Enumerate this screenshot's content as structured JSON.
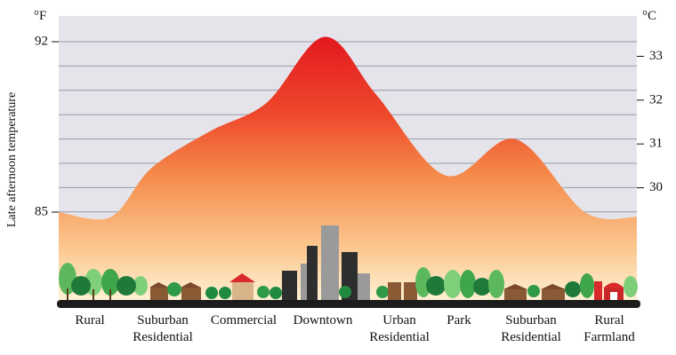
{
  "chart_data": {
    "type": "area",
    "title": "",
    "ylabel": "Late afternoon temperature",
    "units": {
      "left": "°F",
      "right": "°C"
    },
    "left_ticks": [
      85,
      92
    ],
    "right_ticks": [
      30,
      31,
      32,
      33
    ],
    "zones": [
      "Rural",
      "Suburban\nResidential",
      "Commercial",
      "Downtown",
      "Urban\nResidential",
      "Park",
      "Suburban\nResidential",
      "Rural\nFarmland"
    ],
    "profile_f": [
      {
        "x": 0.0,
        "y": 85.0
      },
      {
        "x": 0.09,
        "y": 84.8
      },
      {
        "x": 0.16,
        "y": 86.8
      },
      {
        "x": 0.26,
        "y": 88.3
      },
      {
        "x": 0.36,
        "y": 89.5
      },
      {
        "x": 0.46,
        "y": 92.2
      },
      {
        "x": 0.55,
        "y": 89.8
      },
      {
        "x": 0.67,
        "y": 86.5
      },
      {
        "x": 0.79,
        "y": 88.0
      },
      {
        "x": 0.91,
        "y": 85.0
      },
      {
        "x": 1.0,
        "y": 84.8
      }
    ],
    "y_range_f": [
      82.0,
      93.2
    ],
    "grid": true,
    "colors": {
      "peak": "#e3242b",
      "mid": "#f07a3a",
      "low": "#fde7b8",
      "sky": "#e4e4ea",
      "grid": "#9a9aa8"
    }
  }
}
